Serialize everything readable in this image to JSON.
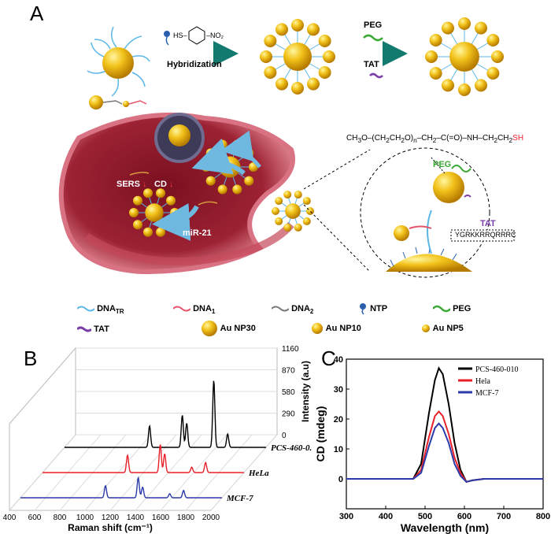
{
  "figure": {
    "panel_a": "A",
    "panel_b": "B",
    "panel_c": "C",
    "reagent_ntp": "HS-C6H4-NO2",
    "step1_label": "Hybridization",
    "step2_top": "PEG",
    "step2_bottom": "TAT",
    "peg_formula": "CH3O-(CH2CH2O)n-CH2-C(=O)-NH-CH2CH2SH",
    "peg_label": "PEG",
    "tat_label": "TAT",
    "tat_sequence": "YGRKKRRQRRRC",
    "sers_label": "SERS",
    "cd_label": "CD",
    "mirna_label": "miR-21"
  },
  "legend": [
    {
      "key": "dna_tr",
      "label": "DNA",
      "sub": "TR",
      "color": "#5bb7e6"
    },
    {
      "key": "dna_1",
      "label": "DNA",
      "sub": "1",
      "color": "#e2556a"
    },
    {
      "key": "dna_2",
      "label": "DNA",
      "sub": "2",
      "color": "#777777"
    },
    {
      "key": "ntp",
      "label": "NTP",
      "color": "#2a5fb0"
    },
    {
      "key": "peg",
      "label": "PEG",
      "color": "#3aa935"
    },
    {
      "key": "tat",
      "label": "TAT",
      "color": "#7b3ea6"
    },
    {
      "key": "aunp30",
      "label": "Au NP30"
    },
    {
      "key": "aunp10",
      "label": "Au NP10"
    },
    {
      "key": "aunp5",
      "label": "Au NP5"
    }
  ],
  "chart_data": [
    {
      "type": "line",
      "panel": "B",
      "xlabel": "Raman shift (cm⁻¹)",
      "ylabel": "Intensity (a.u)",
      "xlim": [
        400,
        2000
      ],
      "xticks": [
        400,
        600,
        800,
        1000,
        1200,
        1400,
        1600,
        1800,
        2000
      ],
      "zticks": [
        0,
        290,
        580,
        870,
        1160
      ],
      "series": [
        {
          "name": "PCS-460-0.",
          "color": "#000000",
          "peaks": [
            [
              1075,
              320
            ],
            [
              1335,
              480
            ],
            [
              1370,
              360
            ],
            [
              1585,
              1000
            ],
            [
              1695,
              200
            ]
          ],
          "color_key": "black"
        },
        {
          "name": "HeLa",
          "color": "#e8202a",
          "peaks": [
            [
              1075,
              260
            ],
            [
              1335,
              420
            ],
            [
              1370,
              280
            ],
            [
              1585,
              80
            ],
            [
              1695,
              150
            ]
          ],
          "color_key": "red"
        },
        {
          "name": "MCF-7",
          "color": "#2b3aa8",
          "peaks": [
            [
              1075,
              180
            ],
            [
              1335,
              300
            ],
            [
              1370,
              160
            ],
            [
              1585,
              60
            ],
            [
              1695,
              110
            ]
          ],
          "color_key": "blue"
        }
      ]
    },
    {
      "type": "line",
      "panel": "C",
      "xlabel": "Wavelength (nm)",
      "ylabel": "CD (mdeg)",
      "xlim": [
        300,
        800
      ],
      "ylim": [
        -10,
        40
      ],
      "xticks": [
        300,
        400,
        500,
        600,
        700,
        800
      ],
      "yticks": [
        0,
        10,
        20,
        30,
        40
      ],
      "legend_position": "top-right",
      "series": [
        {
          "name": "PCS-460-010",
          "color": "#000000",
          "x": [
            300,
            400,
            470,
            490,
            510,
            525,
            535,
            545,
            560,
            575,
            590,
            605,
            620,
            650,
            700,
            800
          ],
          "y": [
            0,
            0,
            0,
            5,
            22,
            33,
            37,
            35,
            25,
            12,
            3,
            -1,
            -0.5,
            0,
            0,
            0
          ]
        },
        {
          "name": "Hela",
          "color": "#e8202a",
          "x": [
            300,
            400,
            470,
            490,
            510,
            525,
            535,
            545,
            560,
            575,
            590,
            605,
            620,
            650,
            700,
            800
          ],
          "y": [
            0,
            0,
            0,
            3,
            14,
            21,
            22.5,
            21,
            15,
            7,
            2,
            -1,
            -0.5,
            0,
            0,
            0
          ]
        },
        {
          "name": "MCF-7",
          "color": "#2b3aa8",
          "x": [
            300,
            400,
            470,
            490,
            510,
            525,
            535,
            545,
            560,
            575,
            590,
            605,
            620,
            650,
            700,
            800
          ],
          "y": [
            0,
            0,
            0,
            2,
            11,
            17,
            18.5,
            17,
            12,
            5,
            1,
            -1,
            -0.5,
            0,
            0,
            0
          ]
        }
      ]
    }
  ]
}
